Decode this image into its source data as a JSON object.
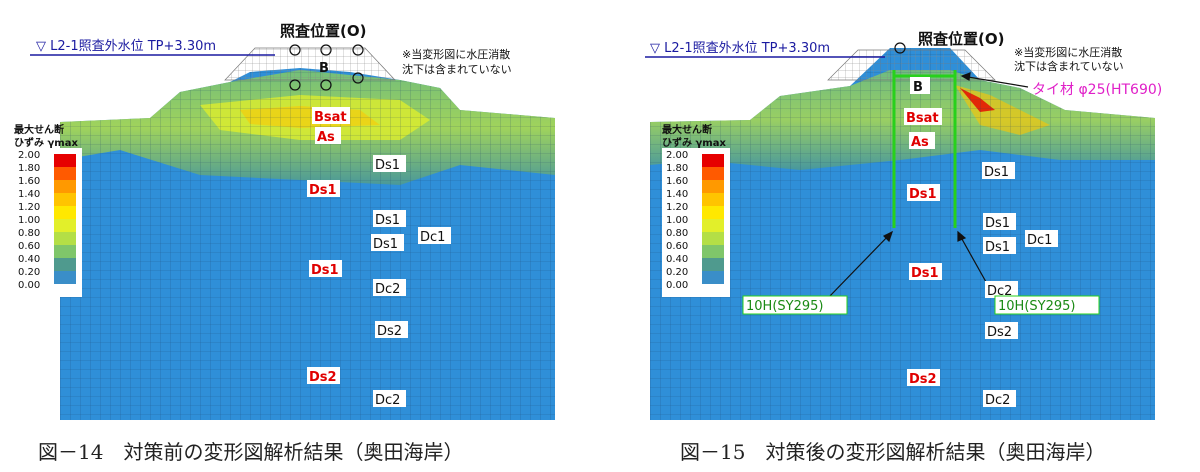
{
  "left": {
    "water_level": "▽ L2-1照査外水位 TP+3.30m",
    "check_position": "照査位置(O)",
    "note_line1": "※当変形図に水圧消散",
    "note_line2": "沈下は含まれていない",
    "legend_title1": "最大せん断",
    "legend_title2": "ひずみ γmax",
    "legend_values": [
      "2.00",
      "1.80",
      "1.60",
      "1.40",
      "1.20",
      "1.00",
      "0.80",
      "0.60",
      "0.40",
      "0.20",
      "0.00"
    ],
    "legend_colors": [
      "#e60000",
      "#ff5a00",
      "#ff9900",
      "#ffc400",
      "#ffe800",
      "#e2ef2a",
      "#b4df46",
      "#7fc66a",
      "#4f9a8e",
      "#3a8ec8",
      "#2b86e0"
    ],
    "layers": {
      "b": "B",
      "bsat": "Bsat",
      "as": "As",
      "ds1_a": "Ds1",
      "ds1_red1": "Ds1",
      "ds1_b": "Ds1",
      "dc1": "Dc1",
      "ds1_c": "Ds1",
      "ds1_red2": "Ds1",
      "dc2_a": "Dc2",
      "ds2_a": "Ds2",
      "ds2_red": "Ds2",
      "dc2_b": "Dc2"
    },
    "caption": "図－14　対策前の変形図解析結果（奥田海岸）"
  },
  "right": {
    "water_level": "▽ L2-1照査外水位 TP+3.30m",
    "check_position": "照査位置(O)",
    "note_line1": "※当変形図に水圧消散",
    "note_line2": "沈下は含まれていない",
    "tie_label": "タイ材 φ25(HT690)",
    "pile_left": "10H(SY295)",
    "pile_right": "10H(SY295)",
    "legend_title1": "最大せん断",
    "legend_title2": "ひずみ γmax",
    "legend_values": [
      "2.00",
      "1.80",
      "1.60",
      "1.40",
      "1.20",
      "1.00",
      "0.80",
      "0.60",
      "0.40",
      "0.20",
      "0.00"
    ],
    "legend_colors": [
      "#e60000",
      "#ff5a00",
      "#ff9900",
      "#ffc400",
      "#ffe800",
      "#e2ef2a",
      "#b4df46",
      "#7fc66a",
      "#4f9a8e",
      "#3a8ec8",
      "#2b86e0"
    ],
    "layers": {
      "b": "B",
      "bsat": "Bsat",
      "as": "As",
      "ds1_a": "Ds1",
      "ds1_red": "Ds1",
      "ds1_b": "Ds1",
      "dc1": "Dc1",
      "ds1_c": "Ds1",
      "ds1_red2": "Ds1",
      "dc2_a": "Dc2",
      "ds2_a": "Ds2",
      "ds2_red": "Ds2",
      "dc2_b": "Dc2"
    },
    "caption": "図－15　対策後の変形図解析結果（奥田海岸）"
  },
  "colors": {
    "soil": "#2f8fd8",
    "mesh": "#1d3f66",
    "red_label": "#e00000",
    "green_pile": "#27d11b",
    "magenta": "#e020c8",
    "water_line": "#1a1aa0"
  }
}
